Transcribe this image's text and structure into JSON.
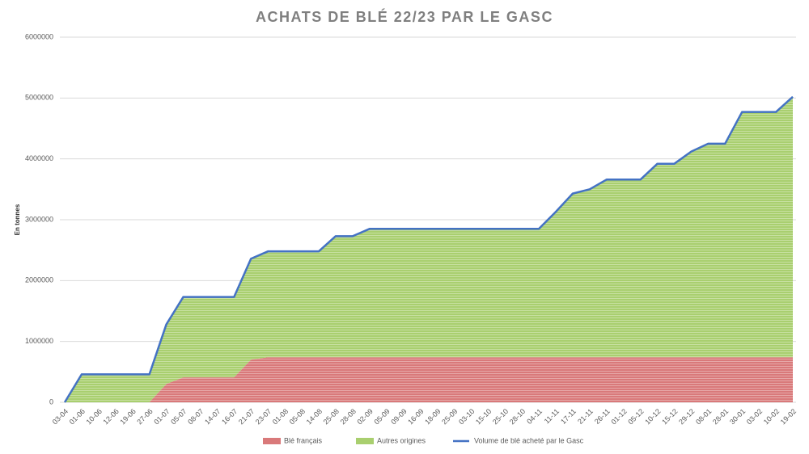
{
  "chart_data": {
    "type": "stacked-area",
    "title": "ACHATS DE BLÉ 22/23 PAR LE GASC",
    "y_label": "En tonnes",
    "categories": [
      "03-04",
      "01-06",
      "10-06",
      "12-06",
      "19-06",
      "27-06",
      "01-07",
      "05-07",
      "08-07",
      "14-07",
      "16-07",
      "21-07",
      "23-07",
      "01-08",
      "05-08",
      "14-08",
      "25-08",
      "28-08",
      "02-09",
      "05-09",
      "09-09",
      "16-09",
      "18-09",
      "25-09",
      "03-10",
      "15-10",
      "25-10",
      "28-10",
      "04-11",
      "11-11",
      "17-11",
      "21-11",
      "26-11",
      "01-12",
      "05-12",
      "10-12",
      "15-12",
      "29-12",
      "08-01",
      "28-01",
      "30-01",
      "03-02",
      "10-02",
      "19-02"
    ],
    "series": [
      {
        "name": "Blé français",
        "kind": "area",
        "color": "#d9797a",
        "values": [
          0,
          0,
          0,
          0,
          0,
          0,
          300000,
          410000,
          410000,
          410000,
          410000,
          700000,
          740000,
          740000,
          740000,
          740000,
          740000,
          740000,
          740000,
          740000,
          740000,
          740000,
          740000,
          740000,
          740000,
          740000,
          740000,
          740000,
          740000,
          740000,
          740000,
          740000,
          740000,
          740000,
          740000,
          740000,
          740000,
          740000,
          740000,
          740000,
          740000,
          740000,
          740000,
          740000
        ]
      },
      {
        "name": "Autres origines",
        "kind": "area",
        "color": "#a9cf6f",
        "values": [
          0,
          460000,
          460000,
          460000,
          460000,
          460000,
          980000,
          1320000,
          1320000,
          1320000,
          1320000,
          1660000,
          1740000,
          1740000,
          1740000,
          1740000,
          1990000,
          1990000,
          2110000,
          2110000,
          2110000,
          2110000,
          2110000,
          2110000,
          2110000,
          2110000,
          2110000,
          2110000,
          2110000,
          2390000,
          2690000,
          2760000,
          2920000,
          2920000,
          2920000,
          3180000,
          3180000,
          3380000,
          3510000,
          3510000,
          4030000,
          4030000,
          4030000,
          4280000
        ]
      },
      {
        "name": "Volume de blé acheté par le Gasc",
        "kind": "line",
        "color": "#4472c4",
        "values": [
          0,
          460000,
          460000,
          460000,
          460000,
          460000,
          1280000,
          1730000,
          1730000,
          1730000,
          1730000,
          2360000,
          2480000,
          2480000,
          2480000,
          2480000,
          2730000,
          2730000,
          2850000,
          2850000,
          2850000,
          2850000,
          2850000,
          2850000,
          2850000,
          2850000,
          2850000,
          2850000,
          2850000,
          3130000,
          3430000,
          3500000,
          3660000,
          3660000,
          3660000,
          3920000,
          3920000,
          4120000,
          4250000,
          4250000,
          4770000,
          4770000,
          4770000,
          5020000
        ]
      }
    ],
    "ylim": [
      0,
      6000000
    ],
    "yticks": [
      0,
      1000000,
      2000000,
      3000000,
      4000000,
      5000000,
      6000000
    ],
    "grid": true,
    "legend": "bottom"
  }
}
